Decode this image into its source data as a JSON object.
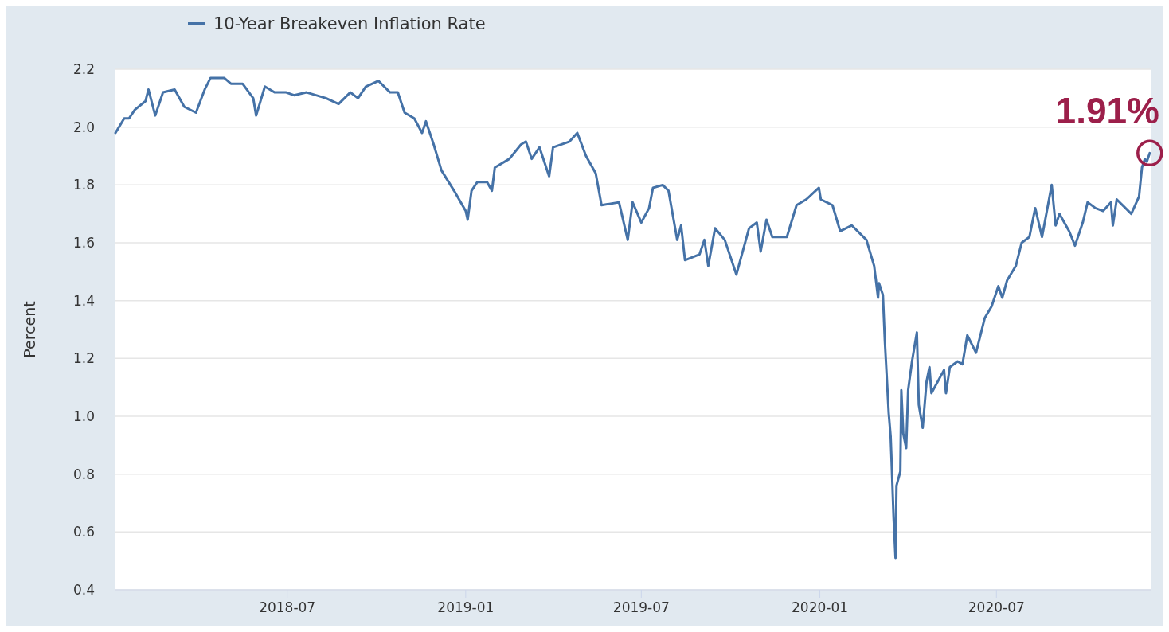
{
  "chart_data": {
    "type": "line",
    "ylabel": "Percent",
    "legend": "top left",
    "grid": "y",
    "line_style": "solid",
    "marker": "none",
    "xlim": [
      "2018-01-05",
      "2020-12-07"
    ],
    "xticks": [
      "2018-07",
      "2019-01",
      "2019-07",
      "2020-01",
      "2020-07"
    ],
    "ylim": [
      0.4,
      2.2
    ],
    "yticks": [
      0.4,
      0.6,
      0.8,
      {
        "value": 1,
        "label": "1.0"
      },
      1.2,
      1.4,
      1.6,
      1.8,
      {
        "value": 2,
        "label": "2.0"
      },
      2.2
    ],
    "annotations": [
      {
        "text": "1.91%",
        "x": "2020-12-06",
        "y": 1.91
      }
    ],
    "x": [
      "2018-01-05",
      "2018-01-14",
      "2018-01-19",
      "2018-01-25",
      "2018-02-05",
      "2018-02-08",
      "2018-02-15",
      "2018-02-23",
      "2018-03-07",
      "2018-03-17",
      "2018-03-29",
      "2018-04-07",
      "2018-04-13",
      "2018-04-27",
      "2018-05-04",
      "2018-05-16",
      "2018-05-27",
      "2018-05-30",
      "2018-06-08",
      "2018-06-18",
      "2018-06-30",
      "2018-07-08",
      "2018-07-21",
      "2018-08-10",
      "2018-08-23",
      "2018-09-04",
      "2018-09-12",
      "2018-09-20",
      "2018-10-03",
      "2018-10-15",
      "2018-10-23",
      "2018-10-30",
      "2018-11-09",
      "2018-11-17",
      "2018-11-21",
      "2018-11-29",
      "2018-12-07",
      "2018-12-20",
      "2019-01-01",
      "2019-01-03",
      "2019-01-07",
      "2019-01-13",
      "2019-01-23",
      "2019-01-28",
      "2019-01-31",
      "2019-02-15",
      "2019-02-27",
      "2019-03-04",
      "2019-03-10",
      "2019-03-18",
      "2019-03-28",
      "2019-04-01",
      "2019-04-18",
      "2019-04-26",
      "2019-05-05",
      "2019-05-15",
      "2019-05-21",
      "2019-06-08",
      "2019-06-17",
      "2019-06-22",
      "2019-07-01",
      "2019-07-09",
      "2019-07-13",
      "2019-07-23",
      "2019-07-29",
      "2019-08-07",
      "2019-08-11",
      "2019-08-15",
      "2019-08-30",
      "2019-09-04",
      "2019-09-08",
      "2019-09-15",
      "2019-09-25",
      "2019-10-07",
      "2019-10-20",
      "2019-10-28",
      "2019-11-01",
      "2019-11-07",
      "2019-11-13",
      "2019-11-28",
      "2019-12-08",
      "2019-12-18",
      "2019-12-31",
      "2020-01-02",
      "2020-01-14",
      "2020-01-22",
      "2020-02-03",
      "2020-02-18",
      "2020-02-26",
      "2020-03-01",
      "2020-03-02",
      "2020-03-06",
      "2020-03-08",
      "2020-03-12",
      "2020-03-14",
      "2020-03-15",
      "2020-03-17",
      "2020-03-19",
      "2020-03-20",
      "2020-03-24",
      "2020-03-25",
      "2020-03-27",
      "2020-03-30",
      "2020-04-01",
      "2020-04-05",
      "2020-04-10",
      "2020-04-12",
      "2020-04-16",
      "2020-04-20",
      "2020-04-23",
      "2020-04-25",
      "2020-05-08",
      "2020-05-10",
      "2020-05-14",
      "2020-05-22",
      "2020-05-27",
      "2020-06-01",
      "2020-06-10",
      "2020-06-19",
      "2020-06-26",
      "2020-07-03",
      "2020-07-07",
      "2020-07-12",
      "2020-07-21",
      "2020-07-27",
      "2020-08-04",
      "2020-08-10",
      "2020-08-17",
      "2020-08-27",
      "2020-08-31",
      "2020-09-04",
      "2020-09-14",
      "2020-09-20",
      "2020-09-28",
      "2020-10-03",
      "2020-10-11",
      "2020-10-19",
      "2020-10-27",
      "2020-10-29",
      "2020-11-02",
      "2020-11-17",
      "2020-11-25",
      "2020-11-28",
      "2020-12-01",
      "2020-12-03",
      "2020-12-06"
    ],
    "series": [
      {
        "name": "10-Year Breakeven Inflation Rate",
        "color": "#4572a7",
        "values": [
          1.98,
          2.03,
          2.03,
          2.06,
          2.09,
          2.13,
          2.04,
          2.12,
          2.13,
          2.07,
          2.05,
          2.13,
          2.17,
          2.17,
          2.15,
          2.15,
          2.1,
          2.04,
          2.14,
          2.12,
          2.12,
          2.11,
          2.12,
          2.1,
          2.08,
          2.12,
          2.1,
          2.14,
          2.16,
          2.12,
          2.12,
          2.05,
          2.03,
          1.98,
          2.02,
          1.94,
          1.85,
          1.78,
          1.71,
          1.68,
          1.78,
          1.81,
          1.81,
          1.78,
          1.86,
          1.89,
          1.94,
          1.95,
          1.89,
          1.93,
          1.83,
          1.93,
          1.95,
          1.98,
          1.9,
          1.84,
          1.73,
          1.74,
          1.61,
          1.74,
          1.67,
          1.72,
          1.79,
          1.8,
          1.78,
          1.61,
          1.66,
          1.54,
          1.56,
          1.61,
          1.52,
          1.65,
          1.61,
          1.49,
          1.65,
          1.67,
          1.57,
          1.68,
          1.62,
          1.62,
          1.73,
          1.75,
          1.79,
          1.75,
          1.73,
          1.64,
          1.66,
          1.61,
          1.52,
          1.41,
          1.46,
          1.42,
          1.26,
          1.01,
          0.93,
          0.84,
          0.65,
          0.51,
          0.76,
          0.81,
          1.09,
          0.94,
          0.89,
          1.09,
          1.19,
          1.29,
          1.04,
          0.96,
          1.12,
          1.17,
          1.08,
          1.16,
          1.08,
          1.17,
          1.19,
          1.18,
          1.28,
          1.22,
          1.34,
          1.38,
          1.45,
          1.41,
          1.47,
          1.52,
          1.6,
          1.62,
          1.72,
          1.62,
          1.8,
          1.66,
          1.7,
          1.64,
          1.59,
          1.67,
          1.74,
          1.72,
          1.71,
          1.74,
          1.66,
          1.75,
          1.7,
          1.76,
          1.86,
          1.89,
          1.88,
          1.91
        ]
      }
    ]
  }
}
